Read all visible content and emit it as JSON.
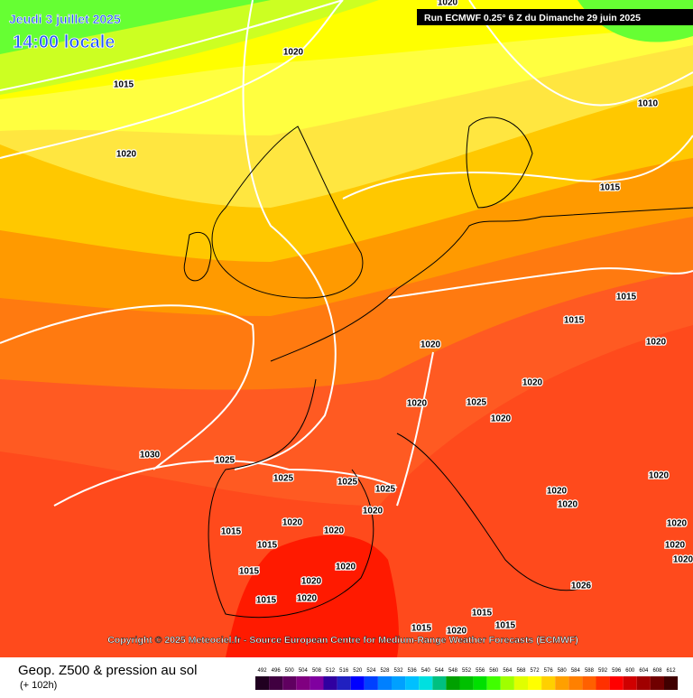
{
  "header": {
    "date": "Jeudi 3 juillet 2025",
    "time": "14:00 locale",
    "run": "Run ECMWF 0.25° 6 Z du Dimanche 29 juin 2025"
  },
  "copyright": "Copyright © 2025 Meteociel.fr - Source European Centre for Medium-Range Weather Forecasts (ECMWF)",
  "isobar_labels": [
    "1020",
    "1015",
    "1020",
    "1020",
    "1010",
    "1015",
    "1015",
    "1015",
    "1020",
    "1020",
    "1020",
    "1025",
    "1020",
    "1020",
    "1030",
    "1025",
    "1025",
    "1025",
    "1025",
    "1020",
    "1020",
    "1020",
    "1015",
    "1020",
    "1020",
    "1015",
    "1015",
    "1020",
    "1020",
    "1015",
    "1020",
    "1026",
    "1015",
    "1015",
    "1015",
    "1020",
    "1020",
    "1020",
    "1020",
    "1020"
  ],
  "legend": {
    "title": "Geop. Z500 & pression au sol",
    "subtitle": "(+ 102h)",
    "levels": [
      492,
      496,
      500,
      504,
      508,
      512,
      516,
      520,
      524,
      528,
      532,
      536,
      540,
      544,
      548,
      552,
      556,
      560,
      564,
      568,
      572,
      576,
      580,
      584,
      588,
      592,
      596,
      600,
      604,
      608,
      612
    ]
  }
}
